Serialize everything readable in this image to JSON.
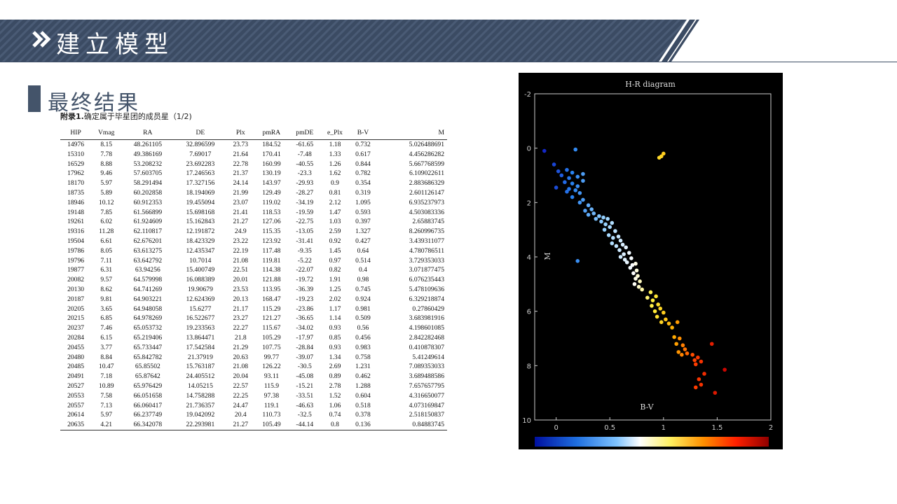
{
  "header": {
    "title": "建立模型"
  },
  "section": {
    "title": "最终结果"
  },
  "caption": {
    "bold": "附录1.",
    "text": "确定属于毕星团的成员星（1/2)"
  },
  "table": {
    "columns": [
      "HIP",
      "Vmag",
      "RA",
      "DE",
      "Plx",
      "pmRA",
      "pmDE",
      "e_Plx",
      "B-V",
      "M"
    ],
    "rows": [
      [
        "14976",
        "8.15",
        "48.261105",
        "32.896599",
        "23.73",
        "184.52",
        "-61.65",
        "1.18",
        "0.732",
        "5.026488691"
      ],
      [
        "15310",
        "7.78",
        "49.386169",
        "7.69017",
        "21.64",
        "170.41",
        "-7.48",
        "1.33",
        "0.617",
        "4.456286282"
      ],
      [
        "16529",
        "8.88",
        "53.208232",
        "23.692283",
        "22.78",
        "160.99",
        "-40.55",
        "1.26",
        "0.844",
        "5.667768599"
      ],
      [
        "17962",
        "9.46",
        "57.603705",
        "17.246563",
        "21.37",
        "130.19",
        "-23.3",
        "1.62",
        "0.782",
        "6.109022611"
      ],
      [
        "18170",
        "5.97",
        "58.291494",
        "17.327156",
        "24.14",
        "143.97",
        "-29.93",
        "0.9",
        "0.354",
        "2.883686329"
      ],
      [
        "18735",
        "5.89",
        "60.202858",
        "18.194069",
        "21.99",
        "129.49",
        "-28.27",
        "0.81",
        "0.319",
        "2.601126147"
      ],
      [
        "18946",
        "10.12",
        "60.912353",
        "19.455094",
        "23.07",
        "119.02",
        "-34.19",
        "2.12",
        "1.095",
        "6.935237973"
      ],
      [
        "19148",
        "7.85",
        "61.566899",
        "15.698168",
        "21.41",
        "118.53",
        "-19.59",
        "1.47",
        "0.593",
        "4.503083336"
      ],
      [
        "19261",
        "6.02",
        "61.924609",
        "15.162843",
        "21.27",
        "127.06",
        "-22.75",
        "1.03",
        "0.397",
        "2.65883745"
      ],
      [
        "19316",
        "11.28",
        "62.110817",
        "12.191872",
        "24.9",
        "115.35",
        "-13.05",
        "2.59",
        "1.327",
        "8.260996735"
      ],
      [
        "19504",
        "6.61",
        "62.676201",
        "18.423329",
        "23.22",
        "123.92",
        "-31.41",
        "0.92",
        "0.427",
        "3.439311077"
      ],
      [
        "19786",
        "8.05",
        "63.613275",
        "12.435347",
        "22.19",
        "117.48",
        "-9.35",
        "1.45",
        "0.64",
        "4.780786511"
      ],
      [
        "19796",
        "7.11",
        "63.642792",
        "10.7014",
        "21.08",
        "119.81",
        "-5.22",
        "0.97",
        "0.514",
        "3.729353033"
      ],
      [
        "19877",
        "6.31",
        "63.94256",
        "15.400749",
        "22.51",
        "114.38",
        "-22.07",
        "0.82",
        "0.4",
        "3.071877475"
      ],
      [
        "20082",
        "9.57",
        "64.579998",
        "16.088389",
        "20.01",
        "121.88",
        "-19.72",
        "1.91",
        "0.98",
        "6.076235443"
      ],
      [
        "20130",
        "8.62",
        "64.741269",
        "19.90679",
        "23.53",
        "113.95",
        "-36.39",
        "1.25",
        "0.745",
        "5.478109636"
      ],
      [
        "20187",
        "9.81",
        "64.903221",
        "12.624369",
        "20.13",
        "168.47",
        "-19.23",
        "2.02",
        "0.924",
        "6.329218874"
      ],
      [
        "20205",
        "3.65",
        "64.948058",
        "15.6277",
        "21.17",
        "115.29",
        "-23.86",
        "1.17",
        "0.981",
        "0.27860429"
      ],
      [
        "20215",
        "6.85",
        "64.978269",
        "16.522677",
        "23.27",
        "121.27",
        "-36.65",
        "1.14",
        "0.509",
        "3.683981916"
      ],
      [
        "20237",
        "7.46",
        "65.053732",
        "19.233563",
        "22.27",
        "115.67",
        "-34.02",
        "0.93",
        "0.56",
        "4.198601085"
      ],
      [
        "20284",
        "6.15",
        "65.219406",
        "13.864471",
        "21.8",
        "105.29",
        "-17.97",
        "0.85",
        "0.456",
        "2.842282468"
      ],
      [
        "20455",
        "3.77",
        "65.733447",
        "17.542584",
        "21.29",
        "107.75",
        "-28.84",
        "0.93",
        "0.983",
        "0.410878307"
      ],
      [
        "20480",
        "8.84",
        "65.842782",
        "21.37919",
        "20.63",
        "99.77",
        "-39.07",
        "1.34",
        "0.758",
        "5.41249614"
      ],
      [
        "20485",
        "10.47",
        "65.85502",
        "15.763187",
        "21.08",
        "126.22",
        "-30.5",
        "2.69",
        "1.231",
        "7.089353033"
      ],
      [
        "20491",
        "7.18",
        "65.87642",
        "24.405512",
        "20.04",
        "93.11",
        "-45.08",
        "0.89",
        "0.462",
        "3.689488586"
      ],
      [
        "20527",
        "10.89",
        "65.976429",
        "14.05215",
        "22.57",
        "115.9",
        "-15.21",
        "2.78",
        "1.288",
        "7.657657795"
      ],
      [
        "20553",
        "7.58",
        "66.051658",
        "14.758288",
        "22.25",
        "97.38",
        "-33.51",
        "1.52",
        "0.604",
        "4.316650077"
      ],
      [
        "20557",
        "7.13",
        "66.060417",
        "21.736357",
        "24.47",
        "119.1",
        "-46.63",
        "1.06",
        "0.518",
        "4.073169847"
      ],
      [
        "20614",
        "5.97",
        "66.237749",
        "19.042092",
        "20.4",
        "110.73",
        "-32.5",
        "0.74",
        "0.378",
        "2.518150837"
      ],
      [
        "20635",
        "4.21",
        "66.342078",
        "22.293981",
        "21.27",
        "105.49",
        "-44.14",
        "0.8",
        "0.136",
        "0.84883745"
      ]
    ]
  },
  "chart_data": {
    "type": "scatter",
    "title": "H-R diagram",
    "xlabel": "B-V",
    "ylabel": "M",
    "xlim": [
      -0.2,
      2
    ],
    "ylim": [
      -2,
      10
    ],
    "y_inverted": true,
    "xticks": [
      "0",
      "0.5",
      "1",
      "1.5",
      "2"
    ],
    "yticks": [
      "-2",
      "0",
      "2",
      "4",
      "6",
      "8",
      "10"
    ],
    "colorbar": true,
    "points": [
      [
        -0.11,
        0.1
      ],
      [
        0.18,
        0.05
      ],
      [
        -0.02,
        0.6
      ],
      [
        0.02,
        0.85
      ],
      [
        0.1,
        0.8
      ],
      [
        0.15,
        0.9
      ],
      [
        0.25,
        0.95
      ],
      [
        0.05,
        1.0
      ],
      [
        0.12,
        1.1
      ],
      [
        0.2,
        1.05
      ],
      [
        0.25,
        1.2
      ],
      [
        0.08,
        1.25
      ],
      [
        0.15,
        1.3
      ],
      [
        0.2,
        1.4
      ],
      [
        0.0,
        1.45
      ],
      [
        0.12,
        1.5
      ],
      [
        0.18,
        1.55
      ],
      [
        0.1,
        1.6
      ],
      [
        0.22,
        1.65
      ],
      [
        0.15,
        1.8
      ],
      [
        0.25,
        1.9
      ],
      [
        0.22,
        2.0
      ],
      [
        0.3,
        2.1
      ],
      [
        0.27,
        2.3
      ],
      [
        0.33,
        2.25
      ],
      [
        0.3,
        2.45
      ],
      [
        0.35,
        2.4
      ],
      [
        0.4,
        2.5
      ],
      [
        0.37,
        2.6
      ],
      [
        0.44,
        2.55
      ],
      [
        0.48,
        2.6
      ],
      [
        0.42,
        2.7
      ],
      [
        0.46,
        2.8
      ],
      [
        0.52,
        2.75
      ],
      [
        0.5,
        2.9
      ],
      [
        0.45,
        3.0
      ],
      [
        0.55,
        3.05
      ],
      [
        0.49,
        3.2
      ],
      [
        0.53,
        3.3
      ],
      [
        0.58,
        3.25
      ],
      [
        0.6,
        3.4
      ],
      [
        0.52,
        3.5
      ],
      [
        0.56,
        3.6
      ],
      [
        0.62,
        3.55
      ],
      [
        0.65,
        3.65
      ],
      [
        0.59,
        3.75
      ],
      [
        0.63,
        3.9
      ],
      [
        0.68,
        3.85
      ],
      [
        0.6,
        4.0
      ],
      [
        0.64,
        4.1
      ],
      [
        0.7,
        4.05
      ],
      [
        0.66,
        4.2
      ],
      [
        0.71,
        4.3
      ],
      [
        0.74,
        4.25
      ],
      [
        0.69,
        4.4
      ],
      [
        0.75,
        4.5
      ],
      [
        0.72,
        4.6
      ],
      [
        0.76,
        4.7
      ],
      [
        0.74,
        4.8
      ],
      [
        0.78,
        4.9
      ],
      [
        0.73,
        5.0
      ],
      [
        0.77,
        5.1
      ],
      [
        0.8,
        5.2
      ],
      [
        0.88,
        5.3
      ],
      [
        0.93,
        5.45
      ],
      [
        0.85,
        5.5
      ],
      [
        0.9,
        5.6
      ],
      [
        0.95,
        5.75
      ],
      [
        0.89,
        5.8
      ],
      [
        0.97,
        5.9
      ],
      [
        0.92,
        6.0
      ],
      [
        1.0,
        6.05
      ],
      [
        0.94,
        6.2
      ],
      [
        1.02,
        6.3
      ],
      [
        0.98,
        6.4
      ],
      [
        1.05,
        6.45
      ],
      [
        1.13,
        6.4
      ],
      [
        1.08,
        6.6
      ],
      [
        1.1,
        6.95
      ],
      [
        1.15,
        7.0
      ],
      [
        1.12,
        7.2
      ],
      [
        1.18,
        7.25
      ],
      [
        1.2,
        7.4
      ],
      [
        1.14,
        7.5
      ],
      [
        1.22,
        7.55
      ],
      [
        1.17,
        7.6
      ],
      [
        1.27,
        7.6
      ],
      [
        1.32,
        7.7
      ],
      [
        1.29,
        7.8
      ],
      [
        1.35,
        7.85
      ],
      [
        1.3,
        7.95
      ],
      [
        1.45,
        7.2
      ],
      [
        1.38,
        8.3
      ],
      [
        1.33,
        8.5
      ],
      [
        1.35,
        8.7
      ],
      [
        1.3,
        8.8
      ],
      [
        1.48,
        9.0
      ],
      [
        1.57,
        8.15
      ],
      [
        0.2,
        4.15
      ],
      [
        0.96,
        0.35
      ],
      [
        0.98,
        0.3
      ],
      [
        1.0,
        0.2
      ]
    ]
  }
}
